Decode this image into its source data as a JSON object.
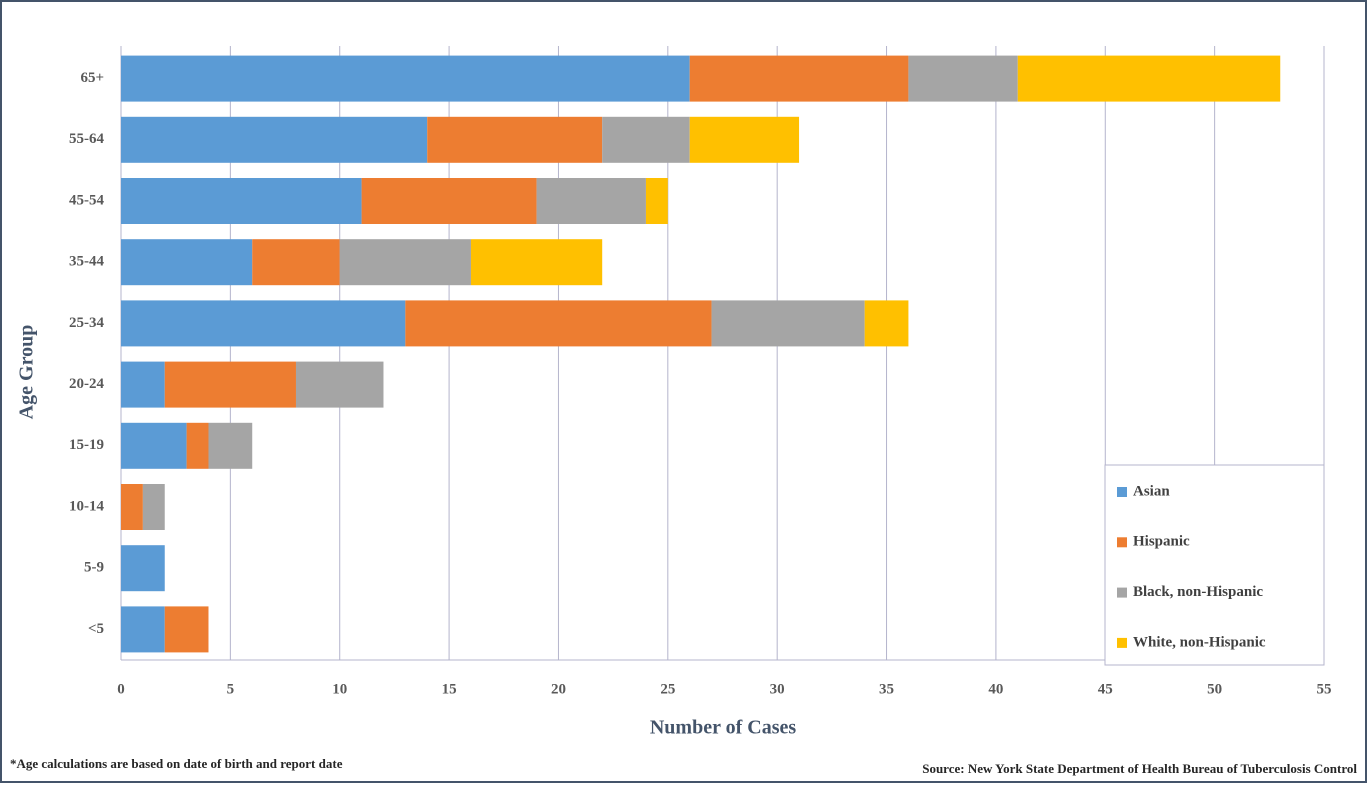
{
  "chart_data": {
    "type": "stacked-barh",
    "x_label": "Number of Cases",
    "y_label": "Age Group",
    "categories": [
      "65+",
      "55-64",
      "45-54",
      "35-44",
      "25-34",
      "20-24",
      "15-19",
      "10-14",
      "5-9",
      "<5"
    ],
    "series": [
      {
        "name": "Asian",
        "color": "#5b9bd5",
        "values": [
          26,
          14,
          11,
          6,
          13,
          2,
          3,
          0,
          2,
          2
        ]
      },
      {
        "name": "Hispanic",
        "color": "#ed7d31",
        "values": [
          10,
          8,
          8,
          4,
          14,
          6,
          1,
          1,
          0,
          2
        ]
      },
      {
        "name": "Black, non-Hispanic",
        "color": "#a5a5a5",
        "values": [
          5,
          4,
          5,
          6,
          7,
          4,
          2,
          1,
          0,
          0
        ]
      },
      {
        "name": "White, non-Hispanic",
        "color": "#ffc000",
        "values": [
          12,
          5,
          1,
          6,
          2,
          0,
          0,
          0,
          0,
          0
        ]
      }
    ],
    "xlim": [
      0,
      55
    ],
    "xticks": [
      0,
      5,
      10,
      15,
      20,
      25,
      30,
      35,
      40,
      45,
      50,
      55
    ],
    "grid": true,
    "legend_position": "lower right",
    "footnote": "*Age calculations are based on date of birth and report date",
    "source": "Source: New York State Department of Health Bureau of Tuberculosis Control"
  }
}
